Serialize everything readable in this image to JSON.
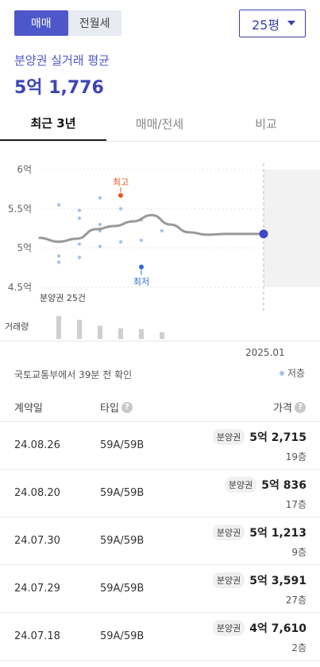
{
  "deal_types": {
    "sale": "매매",
    "lease": "전월세"
  },
  "area_select": {
    "value": "25평"
  },
  "summary": {
    "label": "분양권 실거래 평균",
    "value": "5억 1,776"
  },
  "tabs": [
    "최근 3년",
    "매매/전세",
    "비교"
  ],
  "chart_data": {
    "type": "line",
    "y_ticks": [
      "6억",
      "5.5억",
      "5억",
      "4.5억"
    ],
    "ylim": [
      4.5,
      6.0
    ],
    "y_unit": "억",
    "trend_line": [
      5.13,
      5.08,
      5.12,
      5.24,
      5.28,
      5.34,
      5.42,
      5.3,
      5.2,
      5.17,
      5.18,
      5.18,
      5.18
    ],
    "scatter_points": [
      5.55,
      4.82,
      4.9,
      5.05,
      5.48,
      5.38,
      4.88,
      5.22,
      5.3,
      5.64,
      5.02,
      5.5,
      5.08,
      5.36,
      5.1,
      5.22
    ],
    "current_value": 5.18,
    "high": {
      "label": "최고",
      "value": 5.67,
      "color": "#e8531c"
    },
    "low": {
      "label": "최저",
      "value": 4.76,
      "color": "#2b6ad6"
    },
    "count_label": "분양권 25건",
    "volume_label": "거래량",
    "volume_bars": [
      6,
      5,
      3.5,
      2.8,
      2.6,
      1.8
    ],
    "x_label": "2025.01",
    "line_color": "#999999",
    "current_color": "#4047c9",
    "scatter_color": "#a7c4e8"
  },
  "source_text": "국토교통부에서 39분 전 확인",
  "legend_text": "저층",
  "table": {
    "headers": {
      "date": "계약일",
      "type": "타입",
      "price": "가격",
      "help": "?"
    },
    "rows": [
      {
        "date": "24.08.26",
        "type": "59A/59B",
        "badge": "분양권",
        "amount": "5억 2,715",
        "floor": "19층"
      },
      {
        "date": "24.08.20",
        "type": "59A/59B",
        "badge": "분양권",
        "amount": "5억 836",
        "floor": "17층"
      },
      {
        "date": "24.07.30",
        "type": "59A/59B",
        "badge": "분양권",
        "amount": "5억 1,213",
        "floor": "9층"
      },
      {
        "date": "24.07.29",
        "type": "59A/59B",
        "badge": "분양권",
        "amount": "5억 3,591",
        "floor": "27층"
      },
      {
        "date": "24.07.18",
        "type": "59A/59B",
        "badge": "분양권",
        "amount": "4억 7,610",
        "floor": "2층"
      }
    ]
  }
}
